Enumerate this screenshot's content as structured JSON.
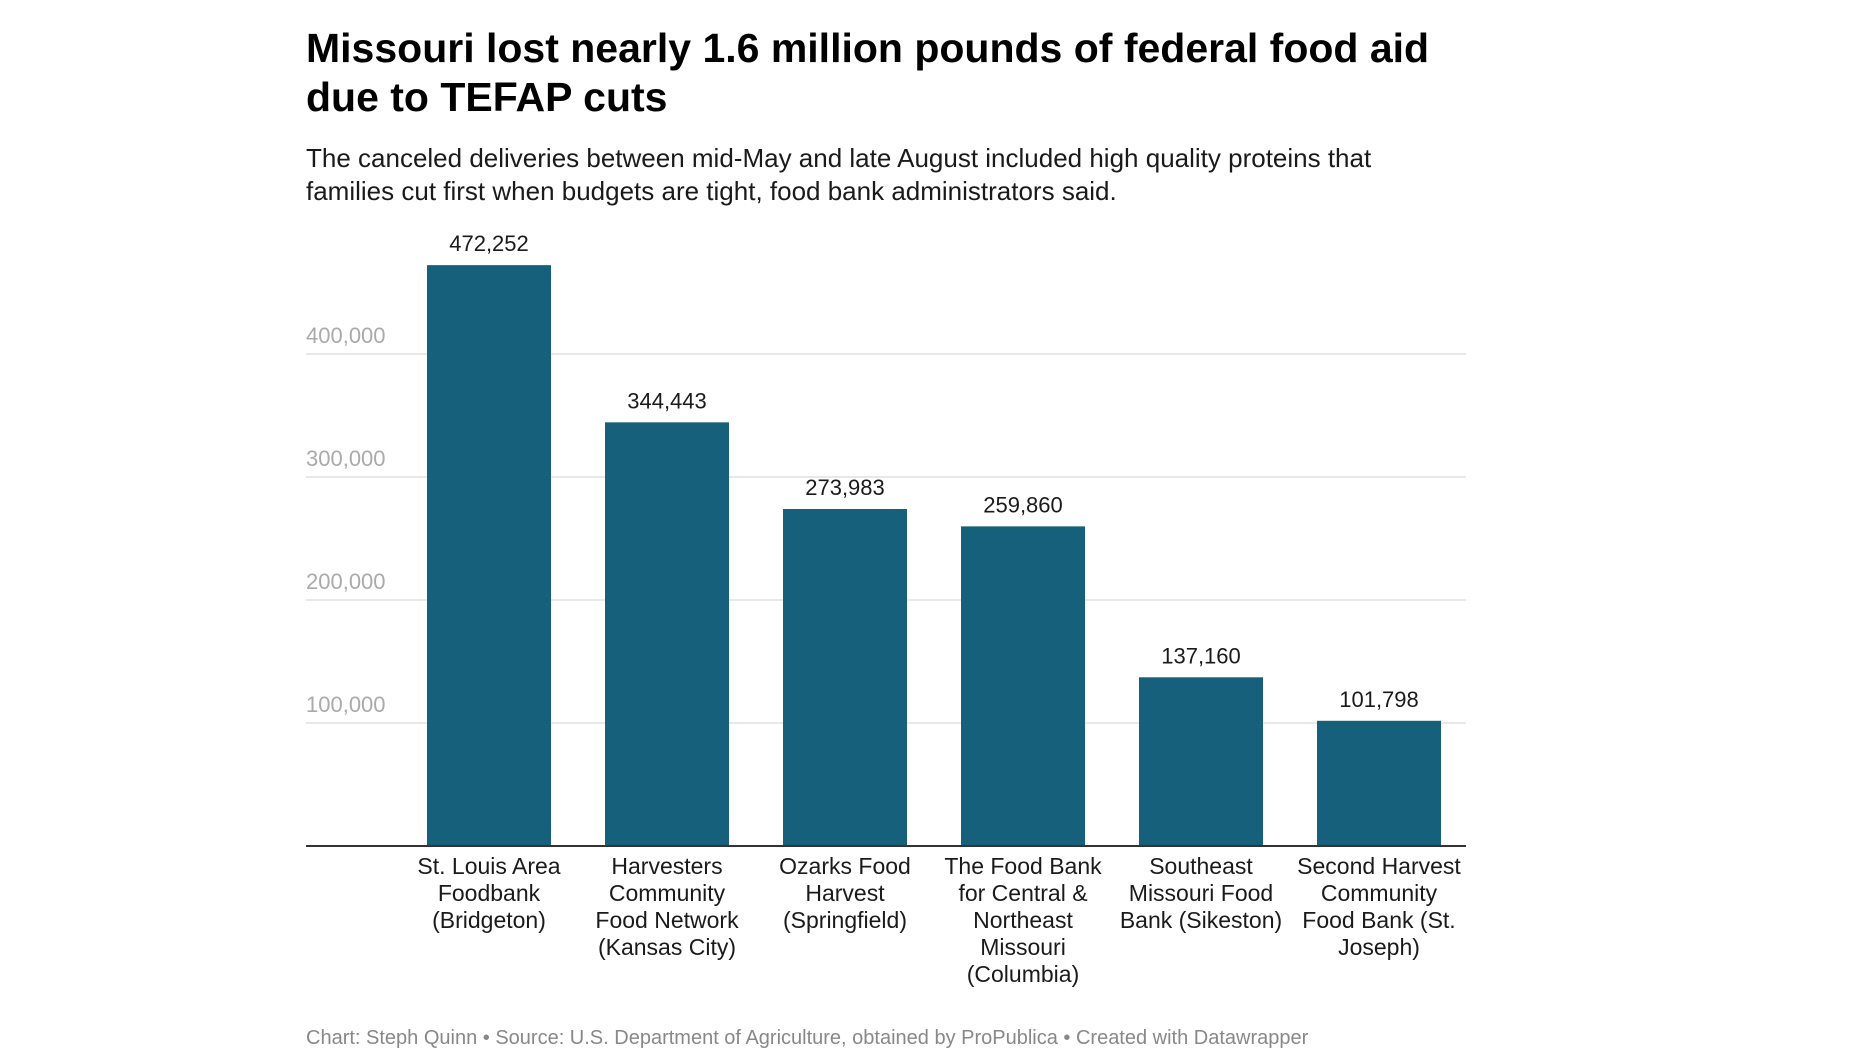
{
  "title": "Missouri lost nearly 1.6 million pounds of federal food aid due to TEFAP cuts",
  "subtitle": "The canceled deliveries between mid-May and late August included high quality proteins that families cut first when budgets are tight, food bank administrators said.",
  "footer": "Chart: Steph Quinn • Source: U.S. Department of Agriculture, obtained by ProPublica • Created with Datawrapper",
  "colors": {
    "bar": "#17607b",
    "grid": "#e0e0e0",
    "axis": "#333333",
    "tick_label": "#aaaaaa"
  },
  "chart_data": {
    "type": "bar",
    "title": "Missouri lost nearly 1.6 million pounds of federal food aid due to TEFAP cuts",
    "subtitle": "The canceled deliveries between mid-May and late August included high quality proteins that families cut first when budgets are tight, food bank administrators said.",
    "categories": [
      "St. Louis Area Foodbank (Bridgeton)",
      "Harvesters Community Food Network (Kansas City)",
      "Ozarks Food Harvest (Springfield)",
      "The Food Bank for Central & Northeast Missouri (Columbia)",
      "Southeast Missouri Food Bank (Sikeston)",
      "Second Harvest Community Food Bank (St. Joseph)"
    ],
    "values": [
      472252,
      344443,
      273983,
      259860,
      137160,
      101798
    ],
    "value_labels": [
      "472,252",
      "344,443",
      "273,983",
      "259,860",
      "137,160",
      "101,798"
    ],
    "ylim": [
      0,
      472252
    ],
    "yticks": [
      100000,
      200000,
      300000,
      400000
    ],
    "ytick_labels": [
      "100,000",
      "200,000",
      "300,000",
      "400,000"
    ],
    "xlabel": "",
    "ylabel": "",
    "grid": true,
    "legend": "none"
  }
}
